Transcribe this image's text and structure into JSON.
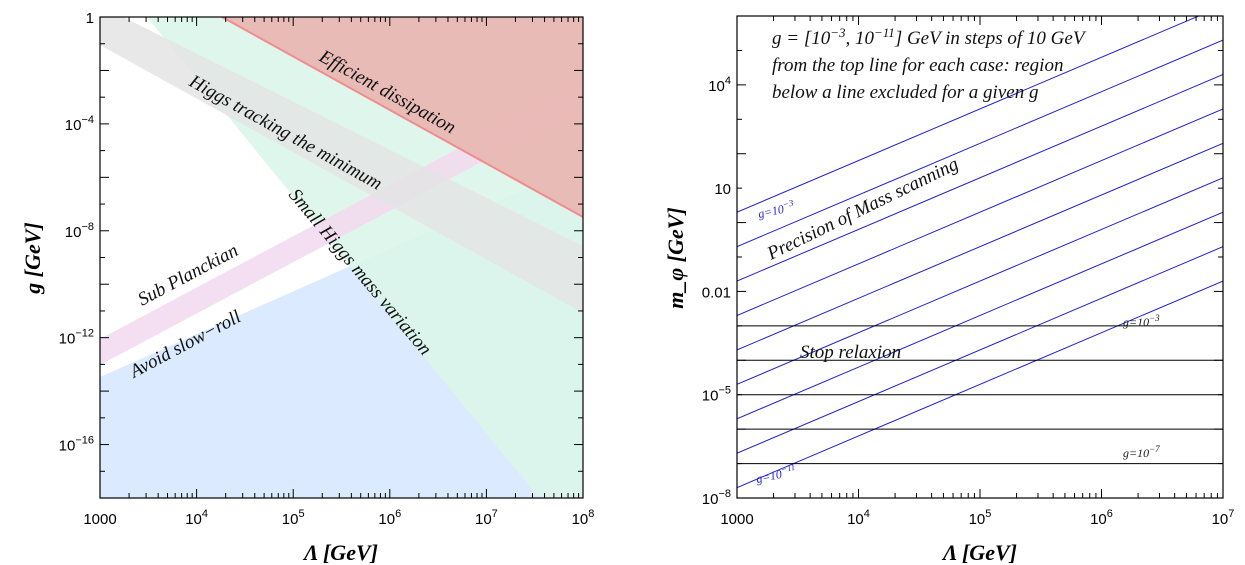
{
  "chart_data": [
    {
      "type": "area",
      "xlabel": "Λ [GeV]",
      "ylabel": "g [GeV]",
      "xscale": "log",
      "yscale": "log",
      "xlim": [
        1000,
        100000000
      ],
      "ylim": [
        1e-18,
        1
      ],
      "x_ticks": [
        {
          "value": 1000,
          "label": "1000"
        },
        {
          "value": 10000,
          "label": "10^4"
        },
        {
          "value": 100000,
          "label": "10^5"
        },
        {
          "value": 1000000,
          "label": "10^6"
        },
        {
          "value": 10000000,
          "label": "10^7"
        },
        {
          "value": 100000000,
          "label": "10^8"
        }
      ],
      "y_ticks": [
        {
          "value": 1,
          "label": "1"
        },
        {
          "value": 0.0001,
          "label": "10^-4"
        },
        {
          "value": 1e-08,
          "label": "10^-8"
        },
        {
          "value": 1e-12,
          "label": "10^-12"
        },
        {
          "value": 1e-16,
          "label": "10^-16"
        }
      ],
      "regions": [
        {
          "name": "Avoid slow−roll",
          "color": "#dbeafe",
          "boundary": [
            [
              1000,
              1e-13
            ],
            [
              100000000,
              0.001
            ]
          ],
          "fill": "below"
        },
        {
          "name": "Small Higgs mass variation",
          "color": "#dcf5ea",
          "boundary": [
            [
              2000,
              1
            ],
            [
              40000000,
              1e-18
            ]
          ],
          "fill": "right"
        },
        {
          "name": "Sub Planckian",
          "color": "#f2dcf0",
          "boundary": [
            [
              1000,
              1e-12
            ],
            [
              100000000,
              0.01
            ]
          ],
          "fill": "band"
        },
        {
          "name": "Higgs tracking the minimum",
          "color": "#e4e4e4",
          "boundary": [
            [
              1000,
              0.1
            ],
            [
              100000000,
              1e-10
            ]
          ],
          "fill": "band"
        },
        {
          "name": "Efficient dissipation",
          "color": "#e8b7b4",
          "boundary": [
            [
              9000,
              1
            ],
            [
              100000000,
              3e-09
            ]
          ],
          "fill": "above"
        }
      ],
      "annotations": [
        "Efficient dissipation",
        "Higgs tracking the minimum",
        "Small Higgs mass variation",
        "Sub Planckian",
        "Avoid slow−roll"
      ]
    },
    {
      "type": "line",
      "xlabel": "Λ [GeV]",
      "ylabel": "m_φ [GeV]",
      "xscale": "log",
      "yscale": "log",
      "xlim": [
        1000,
        10000000
      ],
      "ylim": [
        1e-08,
        1000000
      ],
      "x_ticks": [
        {
          "value": 1000,
          "label": "1000"
        },
        {
          "value": 10000,
          "label": "10^4"
        },
        {
          "value": 100000,
          "label": "10^5"
        },
        {
          "value": 1000000,
          "label": "10^6"
        },
        {
          "value": 10000000,
          "label": "10^7"
        }
      ],
      "y_ticks": [
        {
          "value": 10000,
          "label": "10^4"
        },
        {
          "value": 10,
          "label": "10"
        },
        {
          "value": 0.01,
          "label": "0.01"
        },
        {
          "value": 1e-05,
          "label": "10^-5"
        },
        {
          "value": 1e-08,
          "label": "10^-8"
        }
      ],
      "diagonal_lines": {
        "color": "#1f1fcc",
        "slope_decades_per_decade": 1.5,
        "m_at_1000": [
          2,
          0.2,
          0.02,
          0.002,
          0.0002,
          2e-05,
          2e-06,
          2e-07,
          2e-08
        ],
        "top_label": "g=10^-3",
        "bottom_label": "g=10^-11"
      },
      "horizontal_lines": {
        "color": "#000000",
        "m_values": [
          0.001,
          0.0001,
          1e-05,
          1e-06,
          1e-07
        ],
        "top_label": "g=10^-3",
        "bottom_label": "g=10^-7"
      },
      "annotations": {
        "info_line1_prefix": "g = [10",
        "info_exp1": "−3",
        "info_mid": ", 10",
        "info_exp2": "−11",
        "info_line1_suffix": "] GeV in steps of 10 GeV",
        "info_line2": "from the top line for each case: region",
        "info_line3": "below a line excluded for a given g",
        "precision": "Precision of Mass scanning",
        "stop": "Stop relaxion"
      }
    }
  ],
  "colors": {
    "blue_lines": "#1f1fcc",
    "red_region": "#e8b7b4",
    "red_edge": "#f08c8c"
  }
}
